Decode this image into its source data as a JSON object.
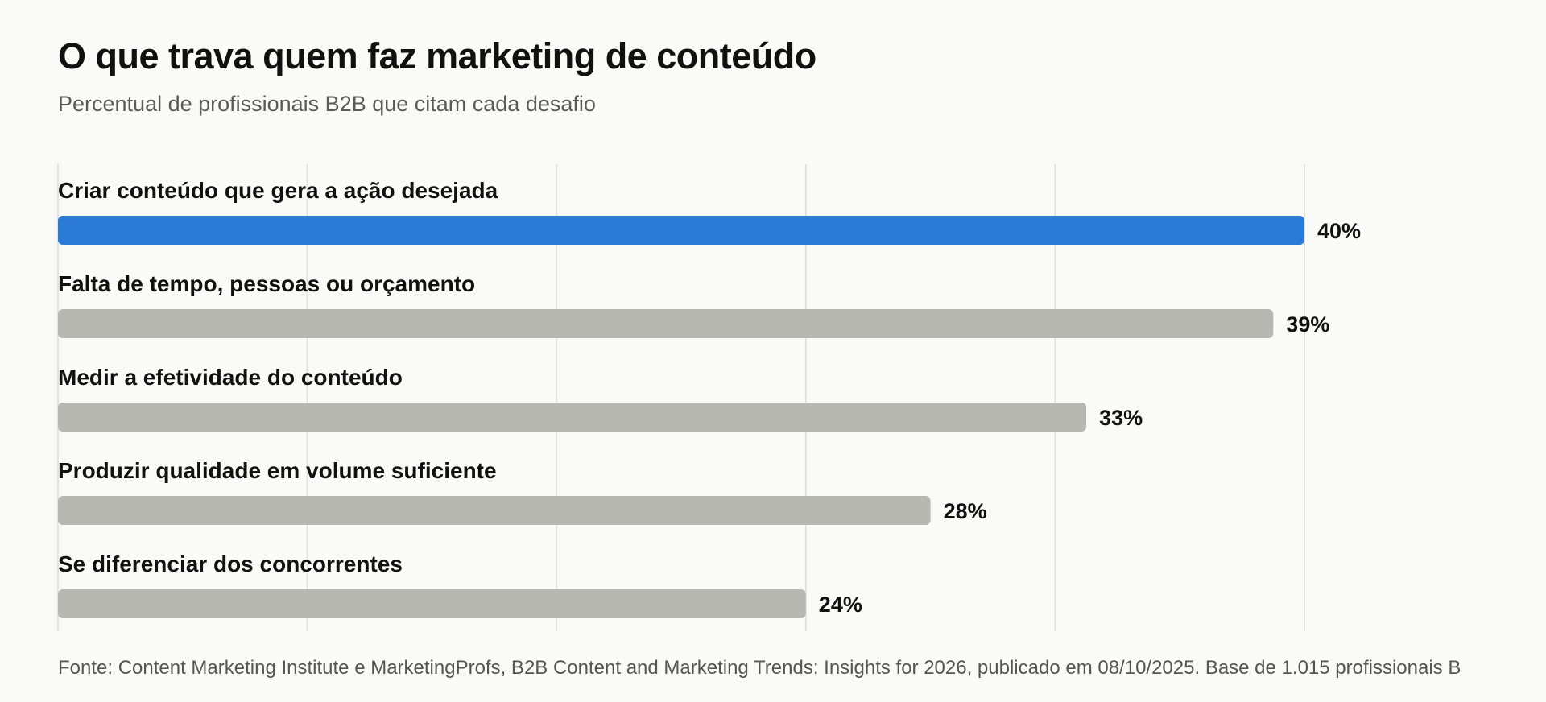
{
  "header": {
    "title": "O que trava quem faz marketing de conteúdo",
    "subtitle": "Percentual de profissionais B2B que citam cada desafio"
  },
  "footer": {
    "source": "Fonte: Content Marketing Institute e MarketingProfs, B2B Content and Marketing Trends: Insights for 2026, publicado em 08/10/2025. Base de 1.015 profissionais B"
  },
  "colors": {
    "highlight": "#2b7bd6",
    "bar": "#b8b8b2",
    "grid": "#e2e2e0",
    "label": "#111111"
  },
  "chart_data": {
    "type": "bar",
    "orientation": "horizontal",
    "title": "O que trava quem faz marketing de conteúdo",
    "subtitle": "Percentual de profissionais B2B que citam cada desafio",
    "categories": [
      "Criar conteúdo que gera a ação desejada",
      "Falta de tempo, pessoas ou orçamento",
      "Medir a efetividade do conteúdo",
      "Produzir qualidade em volume suficiente",
      "Se diferenciar dos concorrentes"
    ],
    "values": [
      40,
      39,
      33,
      28,
      24
    ],
    "value_labels": [
      "40%",
      "39%",
      "33%",
      "28%",
      "24%"
    ],
    "highlight_index": 0,
    "xlim": [
      0,
      40
    ],
    "grid": true,
    "gridlines": [
      0,
      8,
      16,
      24,
      32,
      40
    ]
  }
}
